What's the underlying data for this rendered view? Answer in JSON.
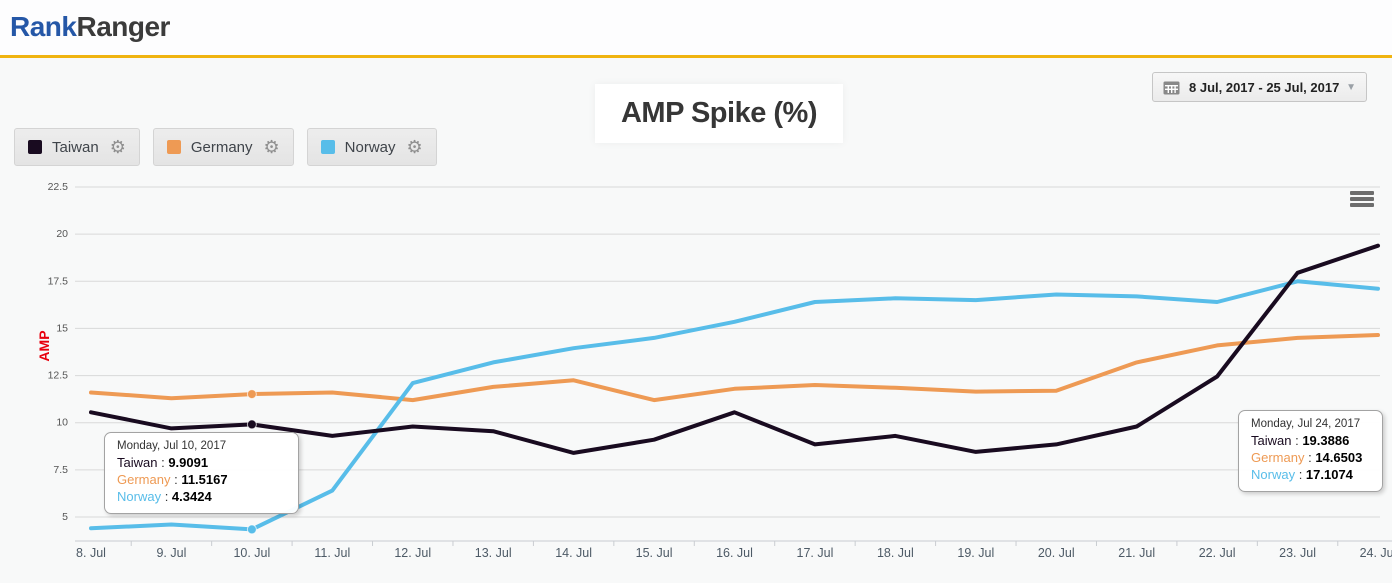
{
  "header": {
    "logo_rank": "Rank",
    "logo_ranger": "Ranger"
  },
  "toolbar": {
    "date_range": "8 Jul, 2017 - 25 Jul, 2017"
  },
  "title": "AMP Spike (%)",
  "icons": {
    "gear": "⚙",
    "caret": "▼"
  },
  "ui": {
    "tooltip_separator": " : "
  },
  "colors": {
    "brand_blue": "#2557a7",
    "logo_dark": "#3b3b3b",
    "accent_yellow": "#f0b411",
    "ylabel_red": "#e8000d",
    "gridline": "#d9d9d9",
    "axis_line": "#c9ccd1",
    "axis_text": "#555555"
  },
  "legend": [
    {
      "label": "Taiwan"
    },
    {
      "label": "Germany"
    },
    {
      "label": "Norway"
    }
  ],
  "chart_data": {
    "type": "line",
    "title": "AMP Spike (%)",
    "xlabel": "",
    "ylabel": "AMP",
    "categories": [
      "8. Jul",
      "9. Jul",
      "10. Jul",
      "11. Jul",
      "12. Jul",
      "13. Jul",
      "14. Jul",
      "15. Jul",
      "16. Jul",
      "17. Jul",
      "18. Jul",
      "19. Jul",
      "20. Jul",
      "21. Jul",
      "22. Jul",
      "23. Jul",
      "24. Jul"
    ],
    "yticks": [
      5,
      7.5,
      10,
      12.5,
      15,
      17.5,
      20,
      22.5
    ],
    "ylim": [
      3.7,
      22.5
    ],
    "grid": true,
    "legend_position": "top-left",
    "marked_category_index": 2,
    "series": [
      {
        "name": "Taiwan",
        "color": "#190b20",
        "values": [
          10.55,
          9.7,
          9.9091,
          9.3,
          9.8,
          9.55,
          8.4,
          9.1,
          10.55,
          8.85,
          9.3,
          8.45,
          8.85,
          9.8,
          12.45,
          17.95,
          19.3886
        ]
      },
      {
        "name": "Germany",
        "color": "#ee9a54",
        "values": [
          11.6,
          11.3,
          11.5167,
          11.6,
          11.2,
          11.9,
          12.25,
          11.2,
          11.8,
          12.0,
          11.85,
          11.65,
          11.7,
          13.2,
          14.1,
          14.5,
          14.6503
        ]
      },
      {
        "name": "Norway",
        "color": "#58bde9",
        "values": [
          4.4,
          4.6,
          4.3424,
          6.4,
          12.1,
          13.2,
          13.95,
          14.5,
          15.35,
          16.4,
          16.6,
          16.5,
          16.8,
          16.7,
          16.4,
          17.5,
          17.1074
        ]
      }
    ]
  },
  "tooltips": [
    {
      "date": "Monday, Jul 10, 2017",
      "rows": [
        {
          "name": "Taiwan",
          "value": "9.9091"
        },
        {
          "name": "Germany",
          "value": "11.5167"
        },
        {
          "name": "Norway",
          "value": "4.3424"
        }
      ]
    },
    {
      "date": "Monday, Jul 24, 2017",
      "rows": [
        {
          "name": "Taiwan",
          "value": "19.3886"
        },
        {
          "name": "Germany",
          "value": "14.6503"
        },
        {
          "name": "Norway",
          "value": "17.1074"
        }
      ]
    }
  ]
}
